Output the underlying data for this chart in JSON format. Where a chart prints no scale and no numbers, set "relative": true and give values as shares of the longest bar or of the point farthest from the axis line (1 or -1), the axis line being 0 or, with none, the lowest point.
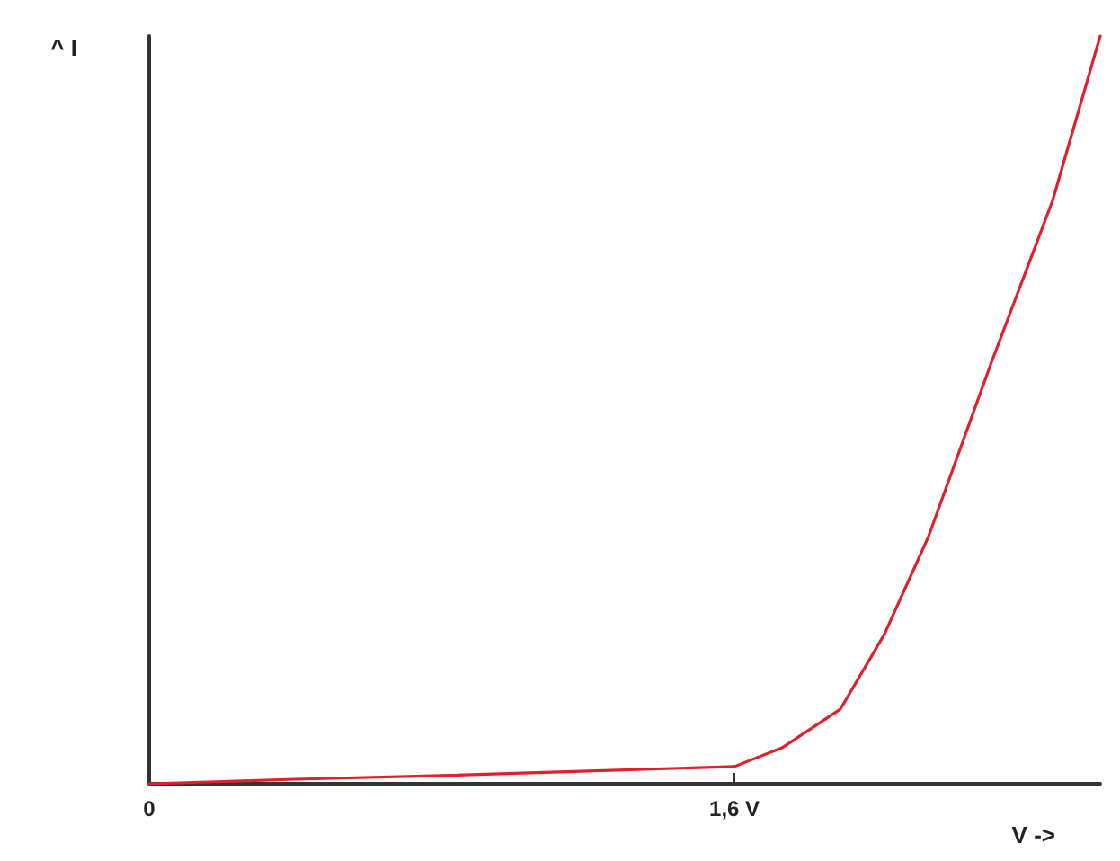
{
  "chart_data": {
    "type": "line",
    "relative": true,
    "xlabel": "V ->",
    "ylabel": "^ I",
    "x": [
      0,
      0.4,
      0.8,
      1.2,
      1.6,
      1.73,
      1.89,
      2.01,
      2.13,
      2.3,
      2.47,
      2.6
    ],
    "series": [
      {
        "color": "#e0202c",
        "values": [
          0,
          0.006,
          0.011,
          0.017,
          0.023,
          0.048,
          0.1,
          0.2,
          0.33,
          0.56,
          0.78,
          1
        ]
      }
    ],
    "xlim": [
      0,
      2.6
    ],
    "xticks": [
      0,
      {
        "value": 1.6,
        "label": "1,6 V"
      }
    ],
    "grid": false,
    "marker": "none",
    "line_style": "solid"
  }
}
